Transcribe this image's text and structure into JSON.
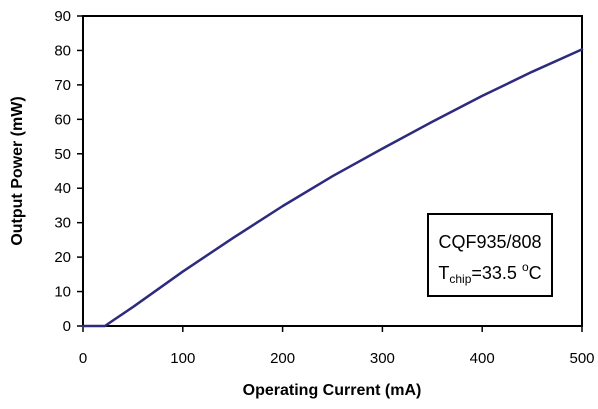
{
  "chart_data": {
    "type": "line",
    "title": "",
    "xlabel": "Operating Current (mA)",
    "ylabel": "Output Power (mW)",
    "xlim": [
      0,
      500
    ],
    "ylim": [
      0,
      90
    ],
    "x_ticks": [
      "0",
      "100",
      "200",
      "300",
      "400",
      "500"
    ],
    "y_ticks": [
      "0",
      "10",
      "20",
      "30",
      "40",
      "50",
      "60",
      "70",
      "80",
      "90"
    ],
    "grid": false,
    "series": [
      {
        "color": "#2e2a7e",
        "x": [
          0,
          10,
          20,
          22,
          30,
          50,
          100,
          150,
          200,
          250,
          300,
          350,
          400,
          450,
          500
        ],
        "y": [
          0,
          0,
          0,
          0,
          1.6,
          5.5,
          15.8,
          25.5,
          34.8,
          43.5,
          51.5,
          59.3,
          66.8,
          73.8,
          80.3
        ]
      }
    ],
    "annotation": {
      "line1": "CQF935/808",
      "line2_main": "T",
      "line2_sub": "chip",
      "line2_rest": "=33.5 ",
      "line2_sup": "o",
      "line2_unit": "C",
      "position": "bottom-right"
    }
  }
}
